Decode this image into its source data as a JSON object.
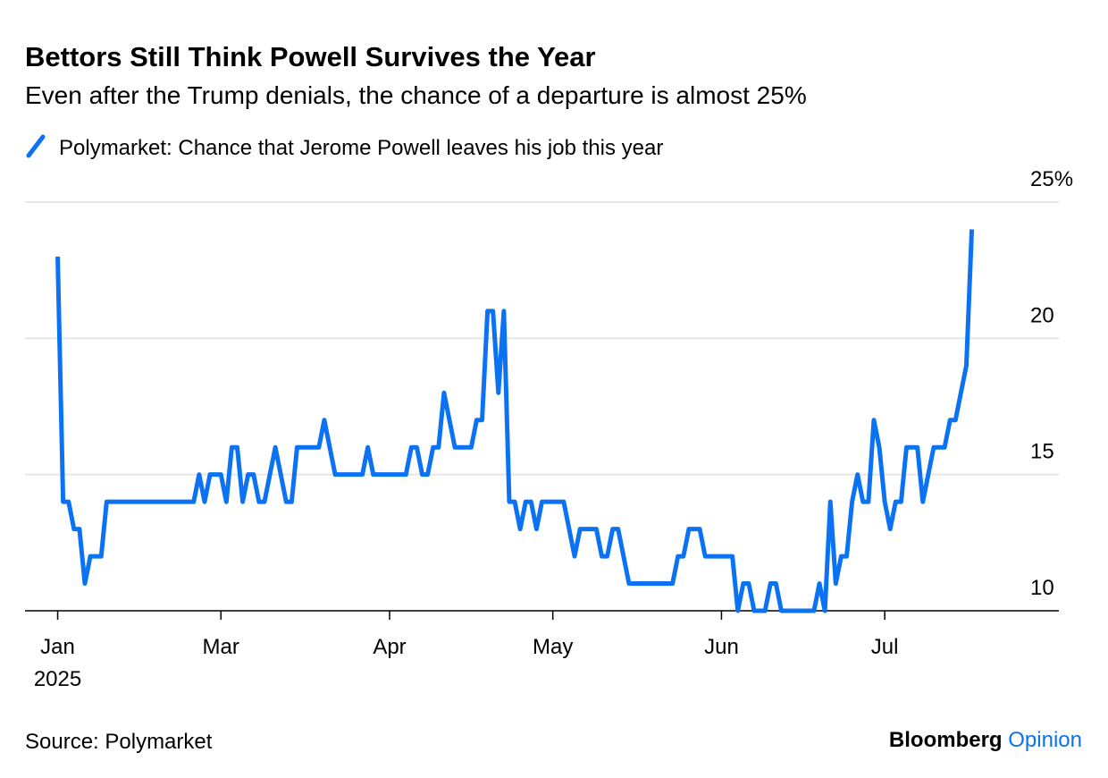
{
  "chart_data": {
    "type": "line",
    "title": "Bettors Still Think Powell Survives the Year",
    "subtitle": "Even after the Trump denials, the chance of a departure is almost 25%",
    "x": [
      0,
      1,
      2,
      3,
      4,
      5,
      6,
      8,
      9,
      25,
      26,
      27,
      28,
      30,
      31,
      32,
      33,
      34,
      35,
      36,
      37,
      38,
      40,
      42,
      43,
      44,
      48,
      49,
      51,
      56,
      57,
      58,
      64,
      65,
      66,
      67,
      68,
      69,
      70,
      71,
      73,
      76,
      77,
      78,
      79,
      80,
      81,
      82,
      83,
      84,
      85,
      86,
      87,
      88,
      89,
      93,
      95,
      96,
      99,
      100,
      101,
      102,
      103,
      105,
      113,
      114,
      115,
      116,
      118,
      119,
      124,
      125,
      126,
      127,
      128,
      130,
      131,
      132,
      133,
      139,
      140,
      141,
      142,
      143,
      144,
      145,
      146,
      147,
      148,
      149,
      150,
      151,
      152,
      153,
      154,
      155,
      156,
      158,
      159,
      161,
      163,
      164,
      165,
      167,
      168
    ],
    "series": [
      {
        "name": "Polymarket: Chance that Jerome Powell leaves his job this year",
        "color": "#0b72f4",
        "values": [
          23,
          14,
          14,
          13,
          13,
          11,
          12,
          12,
          14,
          14,
          15,
          14,
          15,
          15,
          14,
          16,
          16,
          14,
          15,
          15,
          14,
          14,
          16,
          14,
          14,
          16,
          16,
          17,
          15,
          15,
          16,
          15,
          15,
          16,
          16,
          15,
          15,
          16,
          16,
          18,
          16,
          16,
          17,
          17,
          21,
          21,
          18,
          21,
          14,
          14,
          13,
          14,
          14,
          13,
          14,
          14,
          12,
          13,
          13,
          12,
          12,
          13,
          13,
          11,
          11,
          12,
          12,
          13,
          13,
          12,
          12,
          10,
          11,
          11,
          10,
          10,
          11,
          11,
          10,
          10,
          11,
          10,
          14,
          11,
          12,
          12,
          14,
          15,
          14,
          14,
          17,
          16,
          14,
          13,
          14,
          14,
          16,
          16,
          14,
          16,
          16,
          17,
          17,
          19,
          24
        ]
      }
    ],
    "xlim": [
      -6,
      184
    ],
    "xticks": [
      {
        "value": 0,
        "label": "Jan"
      },
      {
        "value": 30,
        "label": "Mar"
      },
      {
        "value": 61,
        "label": "Apr"
      },
      {
        "value": 91,
        "label": "May"
      },
      {
        "value": 122,
        "label": "Jun"
      },
      {
        "value": 152,
        "label": "Jul"
      }
    ],
    "year_label": "2025",
    "ylim": [
      10,
      25
    ],
    "yticks": [
      10,
      15,
      20,
      {
        "value": 25,
        "label": "25%"
      }
    ],
    "grid": true,
    "source": "Source: Polymarket",
    "brand": "Bloomberg",
    "brand_suffix": "Opinion"
  }
}
